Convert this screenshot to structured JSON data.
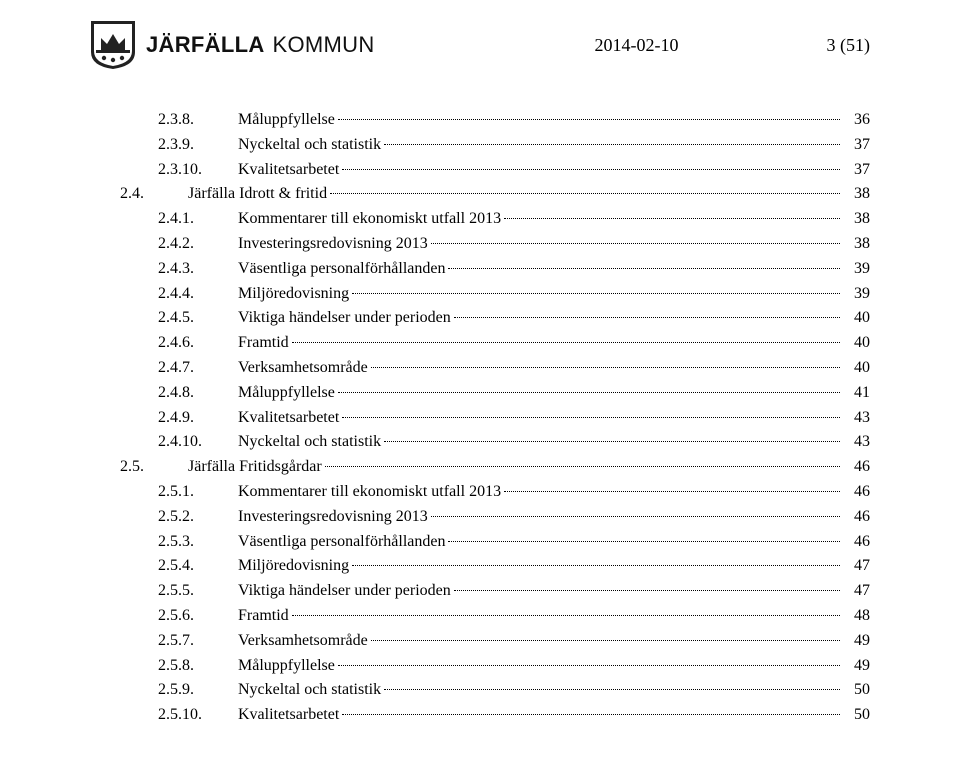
{
  "header": {
    "logo_name_bold": "JÄRFÄLLA",
    "logo_name_light": "KOMMUN",
    "date": "2014-02-10",
    "page_indicator": "3 (51)"
  },
  "toc": [
    {
      "level": 2,
      "num": "2.3.8.",
      "title": "Måluppfyllelse",
      "page": "36"
    },
    {
      "level": 2,
      "num": "2.3.9.",
      "title": "Nyckeltal och statistik",
      "page": "37"
    },
    {
      "level": 2,
      "num": "2.3.10.",
      "title": "Kvalitetsarbetet",
      "page": "37"
    },
    {
      "level": 1,
      "num": "2.4.",
      "title": "Järfälla Idrott & fritid",
      "page": "38"
    },
    {
      "level": 2,
      "num": "2.4.1.",
      "title": "Kommentarer till ekonomiskt utfall 2013",
      "page": "38"
    },
    {
      "level": 2,
      "num": "2.4.2.",
      "title": "Investeringsredovisning 2013",
      "page": "38"
    },
    {
      "level": 2,
      "num": "2.4.3.",
      "title": "Väsentliga personalförhållanden",
      "page": "39"
    },
    {
      "level": 2,
      "num": "2.4.4.",
      "title": "Miljöredovisning",
      "page": "39"
    },
    {
      "level": 2,
      "num": "2.4.5.",
      "title": "Viktiga händelser under perioden",
      "page": "40"
    },
    {
      "level": 2,
      "num": "2.4.6.",
      "title": "Framtid",
      "page": "40"
    },
    {
      "level": 2,
      "num": "2.4.7.",
      "title": "Verksamhetsområde",
      "page": "40"
    },
    {
      "level": 2,
      "num": "2.4.8.",
      "title": "Måluppfyllelse",
      "page": "41"
    },
    {
      "level": 2,
      "num": "2.4.9.",
      "title": "Kvalitetsarbetet",
      "page": "43"
    },
    {
      "level": 2,
      "num": "2.4.10.",
      "title": "Nyckeltal och statistik",
      "page": "43"
    },
    {
      "level": 1,
      "num": "2.5.",
      "title": "Järfälla Fritidsgårdar",
      "page": "46"
    },
    {
      "level": 2,
      "num": "2.5.1.",
      "title": "Kommentarer till ekonomiskt utfall 2013",
      "page": "46"
    },
    {
      "level": 2,
      "num": "2.5.2.",
      "title": "Investeringsredovisning 2013",
      "page": "46"
    },
    {
      "level": 2,
      "num": "2.5.3.",
      "title": "Väsentliga personalförhållanden",
      "page": "46"
    },
    {
      "level": 2,
      "num": "2.5.4.",
      "title": "Miljöredovisning",
      "page": "47"
    },
    {
      "level": 2,
      "num": "2.5.5.",
      "title": "Viktiga händelser under perioden",
      "page": "47"
    },
    {
      "level": 2,
      "num": "2.5.6.",
      "title": "Framtid",
      "page": "48"
    },
    {
      "level": 2,
      "num": "2.5.7.",
      "title": "Verksamhetsområde",
      "page": "49"
    },
    {
      "level": 2,
      "num": "2.5.8.",
      "title": "Måluppfyllelse",
      "page": "49"
    },
    {
      "level": 2,
      "num": "2.5.9.",
      "title": "Nyckeltal och statistik",
      "page": "50"
    },
    {
      "level": 2,
      "num": "2.5.10.",
      "title": "Kvalitetsarbetet",
      "page": "50"
    }
  ]
}
